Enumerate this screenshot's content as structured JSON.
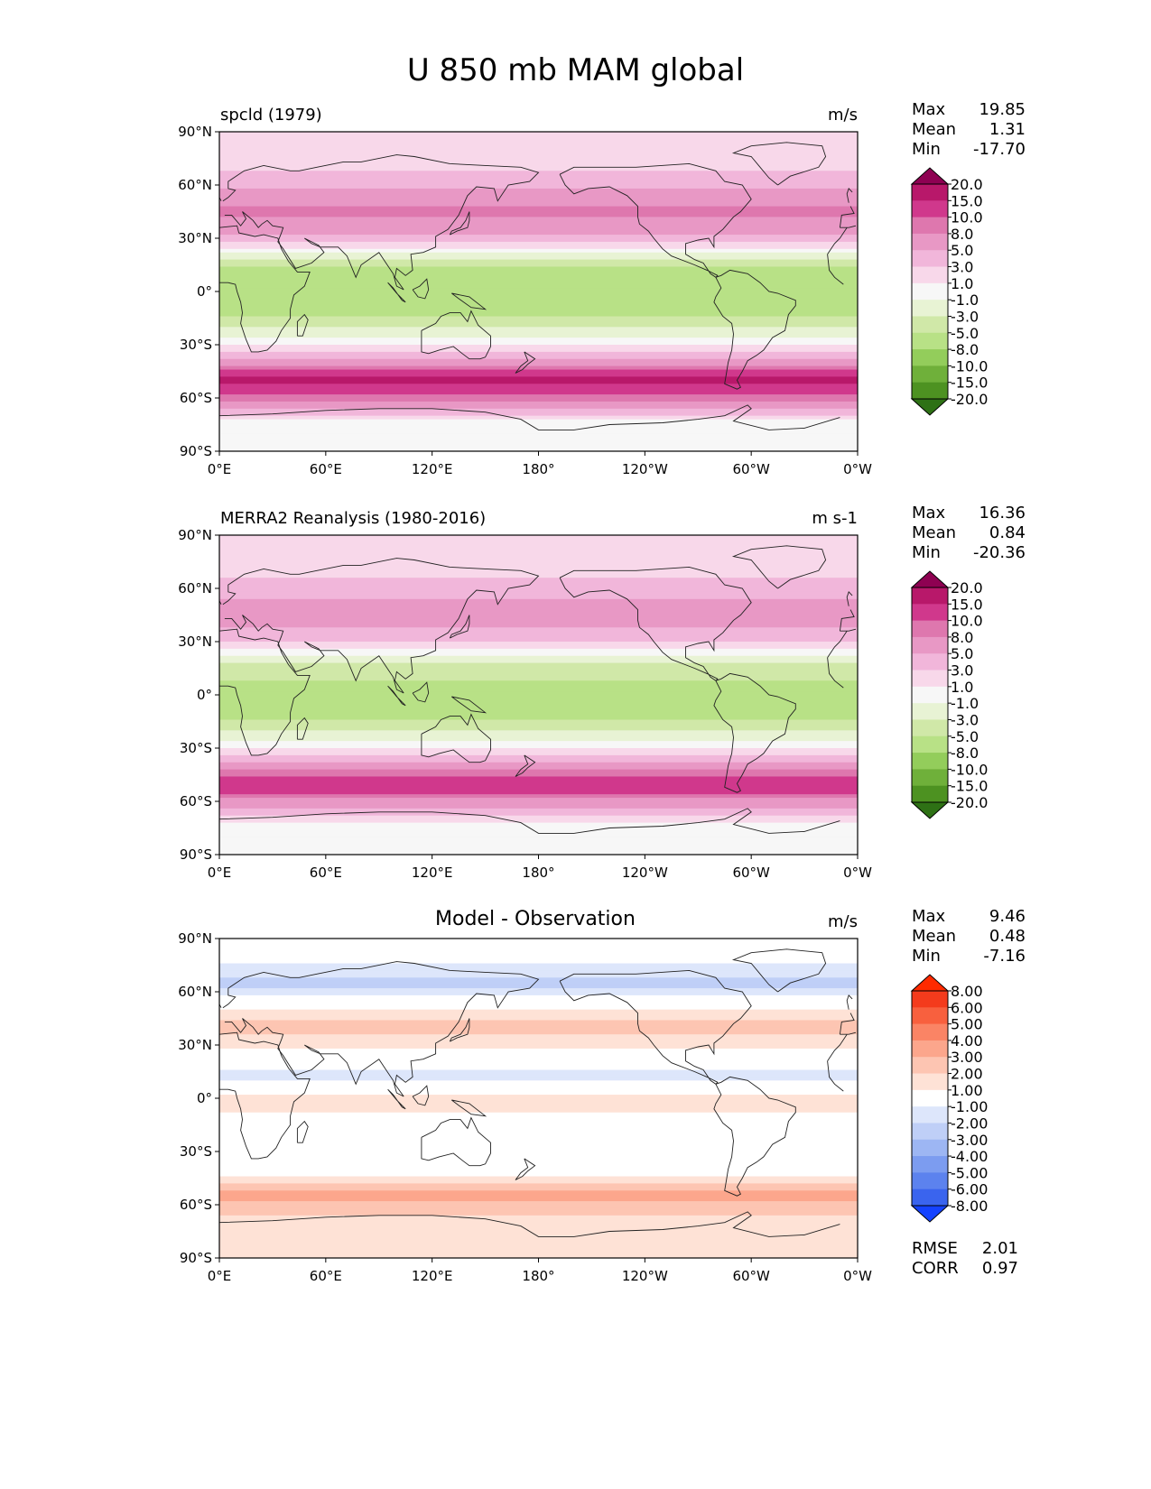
{
  "figure_title": "U 850 mb MAM global",
  "chart_data": [
    {
      "type": "heatmap",
      "title": "spcld (1979)",
      "units": "m/s",
      "stats": {
        "max_label": "Max",
        "max": "19.85",
        "mean_label": "Mean",
        "mean": "1.31",
        "min_label": "Min",
        "min": "-17.70"
      },
      "colorbar": {
        "levels": [
          "20.0",
          "15.0",
          "10.0",
          "8.0",
          "5.0",
          "3.0",
          "1.0",
          "-1.0",
          "-3.0",
          "-5.0",
          "-8.0",
          "-10.0",
          "-15.0",
          "-20.0"
        ],
        "colors": [
          "#8e0152",
          "#b8186a",
          "#d0388c",
          "#de77ae",
          "#e898c5",
          "#f1b6da",
          "#f8d8ea",
          "#f7f7f7",
          "#e8f3d4",
          "#d0e8a8",
          "#b8e186",
          "#93cd5b",
          "#6fb03a",
          "#4d9221",
          "#2e7115"
        ]
      },
      "x_ticks": [
        "0°E",
        "60°E",
        "120°E",
        "180°",
        "120°W",
        "60°W",
        "0°W"
      ],
      "y_ticks": [
        "90°N",
        "60°N",
        "30°N",
        "0°",
        "30°S",
        "60°S",
        "90°S"
      ],
      "lat_profile": [
        {
          "lat": 80,
          "value": 1.5
        },
        {
          "lat": 60,
          "value": 4
        },
        {
          "lat": 45,
          "value": 9
        },
        {
          "lat": 30,
          "value": 4
        },
        {
          "lat": 15,
          "value": -5
        },
        {
          "lat": 0,
          "value": -6
        },
        {
          "lat": -15,
          "value": -5
        },
        {
          "lat": -30,
          "value": 0.5
        },
        {
          "lat": -40,
          "value": 6
        },
        {
          "lat": -50,
          "value": 17
        },
        {
          "lat": -60,
          "value": 9
        },
        {
          "lat": -75,
          "value": -1
        }
      ]
    },
    {
      "type": "heatmap",
      "title": "MERRA2 Reanalysis (1980-2016)",
      "units": "m s-1",
      "stats": {
        "max_label": "Max",
        "max": "16.36",
        "mean_label": "Mean",
        "mean": "0.84",
        "min_label": "Min",
        "min": "-20.36"
      },
      "colorbar": {
        "levels": [
          "20.0",
          "15.0",
          "10.0",
          "8.0",
          "5.0",
          "3.0",
          "1.0",
          "-1.0",
          "-3.0",
          "-5.0",
          "-8.0",
          "-10.0",
          "-15.0",
          "-20.0"
        ],
        "colors": [
          "#8e0152",
          "#b8186a",
          "#d0388c",
          "#de77ae",
          "#e898c5",
          "#f1b6da",
          "#f8d8ea",
          "#f7f7f7",
          "#e8f3d4",
          "#d0e8a8",
          "#b8e186",
          "#93cd5b",
          "#6fb03a",
          "#4d9221",
          "#2e7115"
        ]
      },
      "x_ticks": [
        "0°E",
        "60°E",
        "120°E",
        "180°",
        "120°W",
        "60°W",
        "0°W"
      ],
      "y_ticks": [
        "90°N",
        "60°N",
        "30°N",
        "0°",
        "30°S",
        "60°S",
        "90°S"
      ],
      "lat_profile": [
        {
          "lat": 80,
          "value": 1.5
        },
        {
          "lat": 60,
          "value": 3.5
        },
        {
          "lat": 45,
          "value": 7
        },
        {
          "lat": 30,
          "value": 3
        },
        {
          "lat": 15,
          "value": -4
        },
        {
          "lat": 0,
          "value": -6
        },
        {
          "lat": -15,
          "value": -5
        },
        {
          "lat": -30,
          "value": 0.5
        },
        {
          "lat": -40,
          "value": 6
        },
        {
          "lat": -50,
          "value": 13
        },
        {
          "lat": -60,
          "value": 7
        },
        {
          "lat": -75,
          "value": -1
        }
      ]
    },
    {
      "type": "heatmap",
      "title": "Model - Observation",
      "units": "m/s",
      "stats": {
        "max_label": "Max",
        "max": "9.46",
        "mean_label": "Mean",
        "mean": "0.48",
        "min_label": "Min",
        "min": "-7.16"
      },
      "extra_stats": {
        "rmse_label": "RMSE",
        "rmse": "2.01",
        "corr_label": "CORR",
        "corr": "0.97"
      },
      "colorbar": {
        "levels": [
          "8.00",
          "6.00",
          "5.00",
          "4.00",
          "3.00",
          "2.00",
          "1.00",
          "-1.00",
          "-2.00",
          "-3.00",
          "-4.00",
          "-5.00",
          "-6.00",
          "-8.00"
        ],
        "colors": [
          "#ff2a00",
          "#f43b1c",
          "#f8603e",
          "#fa8465",
          "#fca68c",
          "#fdc5b2",
          "#fee2d6",
          "#ffffff",
          "#dde6fb",
          "#bfcff7",
          "#9db6f3",
          "#7c9cf0",
          "#5c82ee",
          "#3a64ee",
          "#1442ff"
        ]
      },
      "x_ticks": [
        "0°E",
        "60°E",
        "120°E",
        "180°",
        "120°W",
        "60°W",
        "0°W"
      ],
      "y_ticks": [
        "90°N",
        "60°N",
        "30°N",
        "0°",
        "30°S",
        "60°S",
        "90°S"
      ],
      "lat_profile": [
        {
          "lat": 80,
          "value": -0.5
        },
        {
          "lat": 65,
          "value": -2.5
        },
        {
          "lat": 50,
          "value": 1
        },
        {
          "lat": 40,
          "value": 2.5
        },
        {
          "lat": 25,
          "value": 0.5
        },
        {
          "lat": 12,
          "value": -1.5
        },
        {
          "lat": 0,
          "value": 1.5
        },
        {
          "lat": -15,
          "value": 0.5
        },
        {
          "lat": -30,
          "value": 0
        },
        {
          "lat": -45,
          "value": 1
        },
        {
          "lat": -55,
          "value": 3.5
        },
        {
          "lat": -70,
          "value": 1.5
        }
      ]
    }
  ]
}
